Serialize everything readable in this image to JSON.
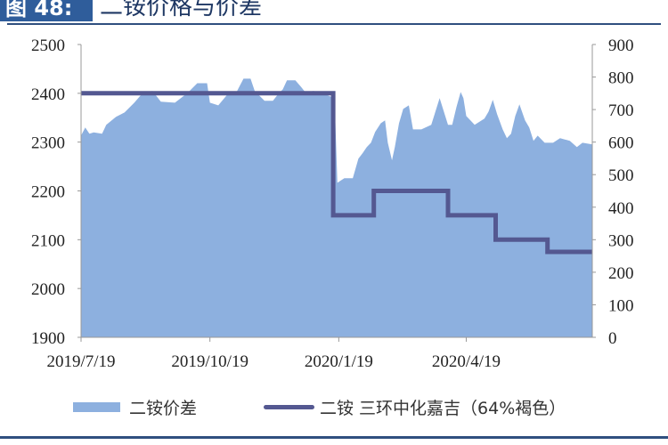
{
  "figure": {
    "label": "图 48:",
    "title": "二铵价格与价差"
  },
  "chart_data": {
    "type": "area+line",
    "title": "二铵价格与价差",
    "x_ticks": [
      "2019/7/19",
      "2019/10/19",
      "2020/1/19",
      "2020/4/19"
    ],
    "xlim": [
      "2019-07-19",
      "2020-07-18"
    ],
    "y_left": {
      "lim": [
        1900,
        2500
      ],
      "ticks": [
        "1900",
        "2000",
        "2100",
        "2200",
        "2300",
        "2400",
        "2500"
      ]
    },
    "y_right": {
      "lim": [
        0,
        900
      ],
      "ticks": [
        "0",
        "100",
        "200",
        "300",
        "400",
        "500",
        "600",
        "700",
        "800",
        "900"
      ]
    },
    "grid": false,
    "legend_placement": "bottom",
    "colors": {
      "area": "#8db0df",
      "line": "#545891",
      "rule": "#2f4f7f"
    },
    "series": [
      {
        "name": "二铵价差",
        "type": "area",
        "axis": "right",
        "points": [
          [
            "2019-07-19",
            620
          ],
          [
            "2019-07-22",
            645
          ],
          [
            "2019-07-25",
            626
          ],
          [
            "2019-07-28",
            630
          ],
          [
            "2019-08-03",
            626
          ],
          [
            "2019-08-06",
            653
          ],
          [
            "2019-08-13",
            678
          ],
          [
            "2019-08-19",
            691
          ],
          [
            "2019-08-26",
            721
          ],
          [
            "2019-09-01",
            751
          ],
          [
            "2019-09-08",
            757
          ],
          [
            "2019-09-14",
            724
          ],
          [
            "2019-09-24",
            721
          ],
          [
            "2019-10-03",
            751
          ],
          [
            "2019-10-10",
            781
          ],
          [
            "2019-10-17",
            781
          ],
          [
            "2019-10-19",
            721
          ],
          [
            "2019-10-25",
            713
          ],
          [
            "2019-11-01",
            749
          ],
          [
            "2019-11-07",
            754
          ],
          [
            "2019-11-12",
            795
          ],
          [
            "2019-11-17",
            795
          ],
          [
            "2019-11-20",
            757
          ],
          [
            "2019-11-27",
            727
          ],
          [
            "2019-12-03",
            727
          ],
          [
            "2019-12-07",
            749
          ],
          [
            "2019-12-10",
            762
          ],
          [
            "2019-12-13",
            790
          ],
          [
            "2019-12-19",
            790
          ],
          [
            "2019-12-23",
            770
          ],
          [
            "2019-12-26",
            754
          ],
          [
            "2020-01-01",
            757
          ],
          [
            "2020-01-08",
            749
          ],
          [
            "2020-01-16",
            735
          ],
          [
            "2020-01-18",
            475
          ],
          [
            "2020-01-23",
            489
          ],
          [
            "2020-01-29",
            489
          ],
          [
            "2020-02-02",
            549
          ],
          [
            "2020-02-05",
            566
          ],
          [
            "2020-02-08",
            585
          ],
          [
            "2020-02-11",
            598
          ],
          [
            "2020-02-14",
            631
          ],
          [
            "2020-02-18",
            658
          ],
          [
            "2020-02-21",
            667
          ],
          [
            "2020-02-23",
            598
          ],
          [
            "2020-02-26",
            544
          ],
          [
            "2020-02-28",
            585
          ],
          [
            "2020-03-02",
            658
          ],
          [
            "2020-03-05",
            702
          ],
          [
            "2020-03-09",
            713
          ],
          [
            "2020-03-12",
            639
          ],
          [
            "2020-03-18",
            639
          ],
          [
            "2020-03-25",
            653
          ],
          [
            "2020-03-28",
            694
          ],
          [
            "2020-03-31",
            735
          ],
          [
            "2020-04-03",
            694
          ],
          [
            "2020-04-06",
            653
          ],
          [
            "2020-04-09",
            653
          ],
          [
            "2020-04-12",
            708
          ],
          [
            "2020-04-15",
            754
          ],
          [
            "2020-04-17",
            735
          ],
          [
            "2020-04-19",
            680
          ],
          [
            "2020-04-22",
            667
          ],
          [
            "2020-04-25",
            653
          ],
          [
            "2020-05-02",
            672
          ],
          [
            "2020-05-05",
            694
          ],
          [
            "2020-05-08",
            730
          ],
          [
            "2020-05-11",
            686
          ],
          [
            "2020-05-15",
            639
          ],
          [
            "2020-05-18",
            612
          ],
          [
            "2020-05-21",
            626
          ],
          [
            "2020-05-24",
            680
          ],
          [
            "2020-05-27",
            716
          ],
          [
            "2020-05-31",
            667
          ],
          [
            "2020-06-03",
            645
          ],
          [
            "2020-06-06",
            604
          ],
          [
            "2020-06-09",
            620
          ],
          [
            "2020-06-14",
            598
          ],
          [
            "2020-06-20",
            598
          ],
          [
            "2020-06-25",
            612
          ],
          [
            "2020-07-02",
            604
          ],
          [
            "2020-07-07",
            585
          ],
          [
            "2020-07-11",
            598
          ],
          [
            "2020-07-18",
            593
          ]
        ]
      },
      {
        "name": "二铵 三环中化嘉吉（64%褐色）",
        "type": "step-line",
        "axis": "left",
        "points": [
          [
            "2019-07-19",
            2400
          ],
          [
            "2020-01-15",
            2400
          ],
          [
            "2020-01-15",
            2150
          ],
          [
            "2020-02-13",
            2150
          ],
          [
            "2020-02-13",
            2200
          ],
          [
            "2020-04-06",
            2200
          ],
          [
            "2020-04-06",
            2150
          ],
          [
            "2020-05-10",
            2150
          ],
          [
            "2020-05-10",
            2100
          ],
          [
            "2020-06-16",
            2100
          ],
          [
            "2020-06-16",
            2075
          ],
          [
            "2020-07-18",
            2075
          ]
        ]
      }
    ]
  }
}
